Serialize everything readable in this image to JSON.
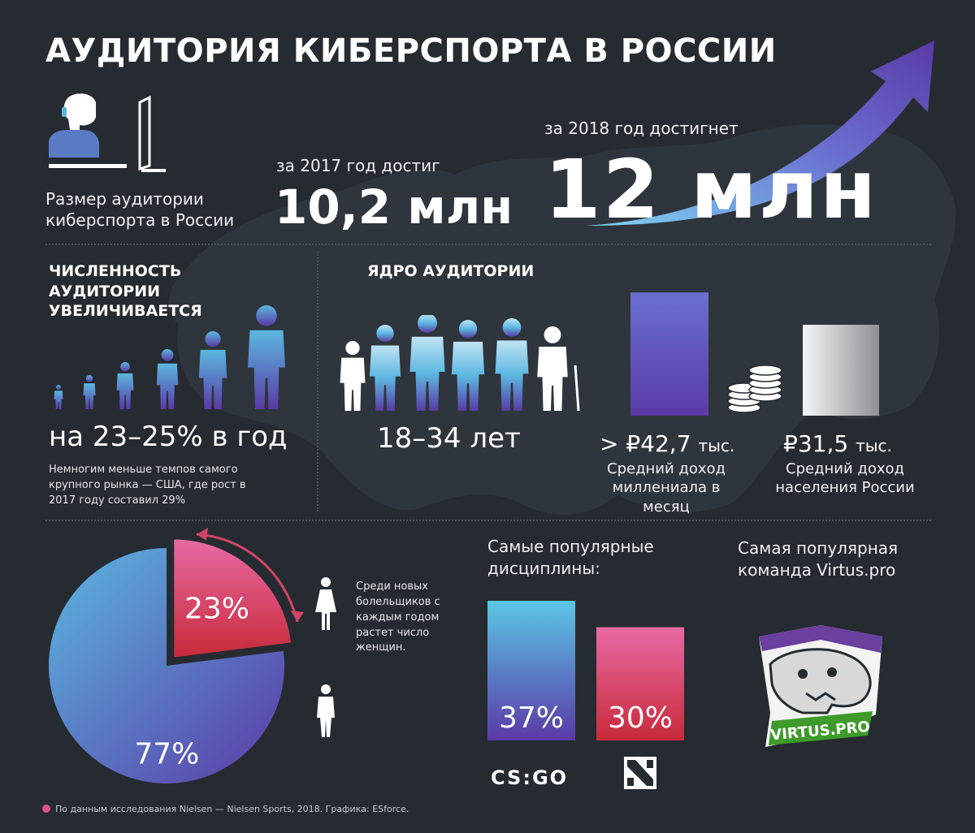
{
  "title": "АУДИТОРИЯ КИБЕРСПОРТА В РОССИИ",
  "audience": {
    "caption": "Размер аудитории киберспорта в России",
    "y2017_label": "за 2017 год достиг",
    "y2017_value": "10,2 млн",
    "y2018_label": "за 2018 год достигнет",
    "y2018_value": "12 млн"
  },
  "growth": {
    "heading": "ЧИСЛЕННОСТЬ АУДИТОРИИ УВЕЛИЧИВАЕТСЯ",
    "value": "на 23–25% в год",
    "note": "Немногим меньше темпов самого крупного рынка — США, где рост в 2017 году составил 29%"
  },
  "core": {
    "heading": "ЯДРО АУДИТОРИИ",
    "age": "18–34 лет"
  },
  "income": {
    "millennial_value": "> ₽42,7",
    "millennial_unit": "тыс.",
    "millennial_caption": "Средний доход миллениала в месяц",
    "russia_value": "₽31,5",
    "russia_unit": "тыс.",
    "russia_caption": "Средний доход населения России"
  },
  "gender": {
    "note": "Среди новых болельщиков с каждым годом растет число женщин.",
    "female_label": "23%",
    "male_label": "77%"
  },
  "disciplines": {
    "heading": "Самые популярные дисциплины:",
    "csgo_logo": "CS:GO",
    "csgo_label": "37%",
    "dota_label": "30%"
  },
  "team": {
    "heading": "Самая популярная команда Virtus.pro",
    "logo_text": "VIRTUS.PRO"
  },
  "footer": "По данным исследования Nielsen — Nielsen Sports, 2018. Графика: ESforce.",
  "colors": {
    "background": "#262b31",
    "blue": "#5bb7e0",
    "purple": "#5a3aa6",
    "pink": "#e0508a",
    "red": "#c72a3a",
    "team_green": "#3e9a2a"
  },
  "chart_data": [
    {
      "type": "bar",
      "categories": [
        "2017",
        "2018"
      ],
      "values": [
        10.2,
        12
      ],
      "unit": "млн"
    },
    {
      "type": "bar",
      "categories": [
        "Средний доход миллениала в месяц",
        "Средний доход населения России"
      ],
      "values": [
        42.7,
        31.5
      ],
      "unit": "тыс. ₽"
    },
    {
      "type": "pie",
      "labels": [
        "23%",
        "77%"
      ],
      "values": [
        23,
        77
      ]
    },
    {
      "type": "bar",
      "categories": [
        "CS:GO",
        "Dota 2"
      ],
      "values": [
        37,
        30
      ],
      "unit": "%"
    }
  ]
}
